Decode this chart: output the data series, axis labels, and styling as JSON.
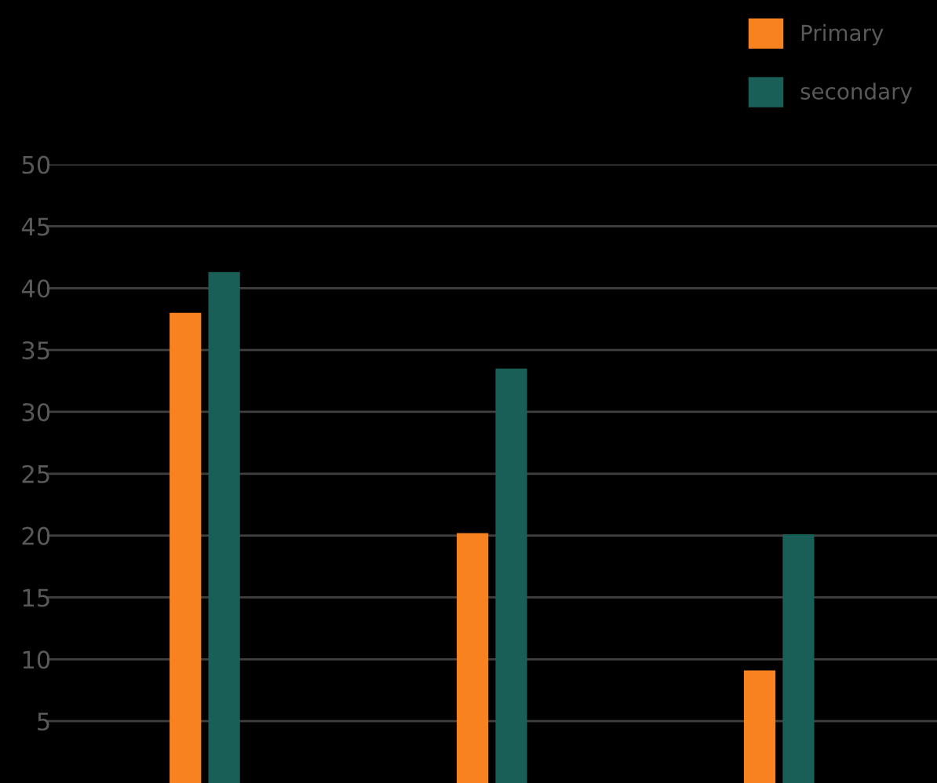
{
  "chart_data": {
    "type": "bar",
    "categories": [
      null,
      null,
      null
    ],
    "series": [
      {
        "name": "Primary",
        "color": "#f7821f",
        "values": [
          38,
          20.2,
          9.1
        ]
      },
      {
        "name": "secondary",
        "color": "#1a5e58",
        "values": [
          41.3,
          33.5,
          20.1
        ]
      }
    ],
    "ylim": [
      0,
      50
    ],
    "yticks": [
      5,
      10,
      15,
      20,
      25,
      30,
      35,
      40,
      45,
      50
    ],
    "grid": "y",
    "legend": "top right",
    "tick_labels": "y"
  }
}
